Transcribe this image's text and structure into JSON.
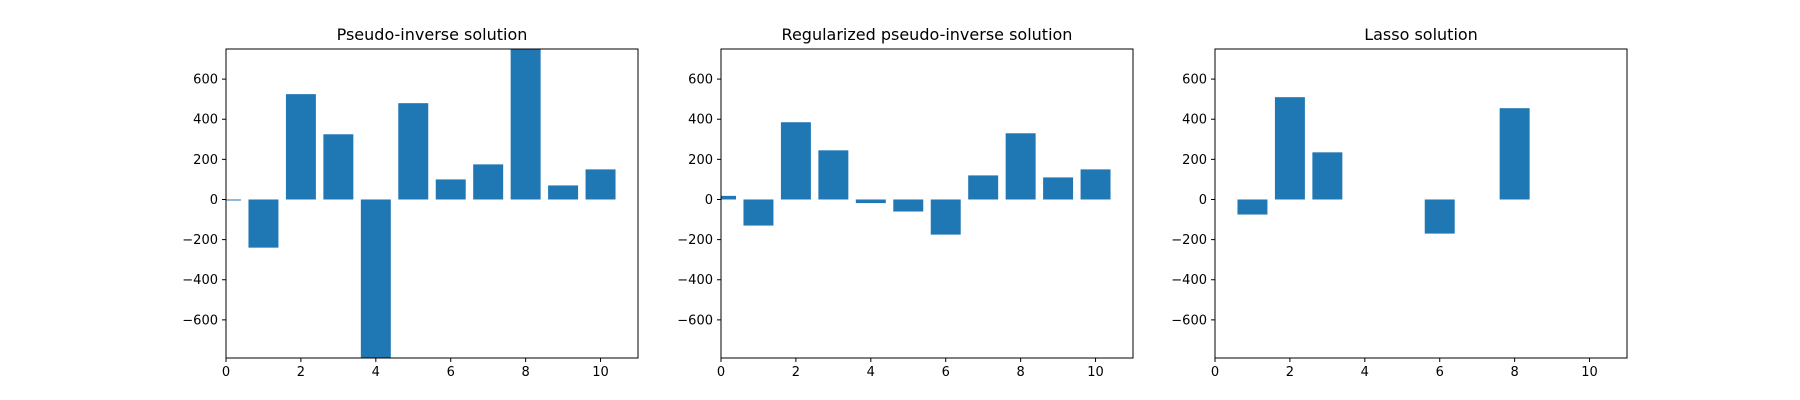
{
  "colors": {
    "bar": "#1f77b4",
    "background": "#ffffff",
    "axes": "#000000"
  },
  "chart_data": [
    {
      "type": "bar",
      "title": "Pseudo-inverse solution",
      "xlabel": "",
      "ylabel": "",
      "x": [
        0,
        1,
        2,
        3,
        4,
        5,
        6,
        7,
        8,
        9,
        10
      ],
      "values": [
        -5,
        -240,
        525,
        325,
        -790,
        480,
        100,
        175,
        760,
        70,
        150
      ],
      "xlim": [
        0,
        11
      ],
      "ylim": [
        -790,
        750
      ],
      "xticks": [
        0,
        2,
        4,
        6,
        8,
        10
      ],
      "yticks": [
        -600,
        -400,
        -200,
        0,
        200,
        400,
        600
      ],
      "grid": false
    },
    {
      "type": "bar",
      "title": "Regularized pseudo-inverse solution",
      "xlabel": "",
      "ylabel": "",
      "x": [
        0,
        1,
        2,
        3,
        4,
        5,
        6,
        7,
        8,
        9,
        10
      ],
      "values": [
        18,
        -130,
        385,
        245,
        -18,
        -60,
        -175,
        120,
        330,
        110,
        150
      ],
      "xlim": [
        0,
        11
      ],
      "ylim": [
        -790,
        750
      ],
      "xticks": [
        0,
        2,
        4,
        6,
        8,
        10
      ],
      "yticks": [
        -600,
        -400,
        -200,
        0,
        200,
        400,
        600
      ],
      "grid": false
    },
    {
      "type": "bar",
      "title": "Lasso solution",
      "xlabel": "",
      "ylabel": "",
      "x": [
        0,
        1,
        2,
        3,
        4,
        5,
        6,
        7,
        8,
        9,
        10
      ],
      "values": [
        0,
        -75,
        510,
        235,
        0,
        0,
        -170,
        0,
        455,
        0,
        0
      ],
      "xlim": [
        0,
        11
      ],
      "ylim": [
        -790,
        750
      ],
      "xticks": [
        0,
        2,
        4,
        6,
        8,
        10
      ],
      "yticks": [
        -600,
        -400,
        -200,
        0,
        200,
        400,
        600
      ],
      "grid": false
    }
  ]
}
